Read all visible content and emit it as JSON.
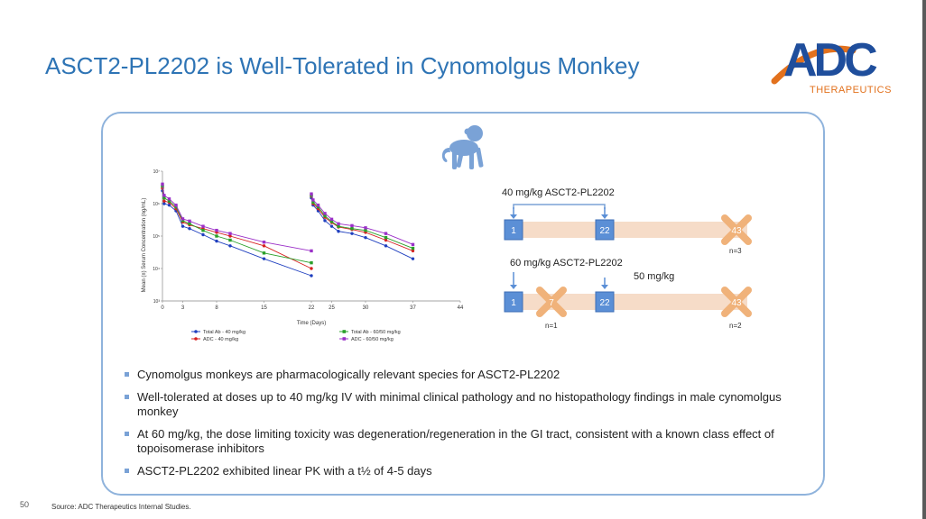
{
  "slide": {
    "title": "ASCT2-PL2202 is Well-Tolerated in Cynomolgus Monkey",
    "page_number": "50",
    "source": "Source: ADC Therapeutics Internal Studies.",
    "logo_text": "ADC",
    "logo_subtext": "THERAPEUTICS"
  },
  "colors": {
    "title": "#2e74b5",
    "panel_border": "#8fb3dc",
    "timeline_bar": "#f6dcc8",
    "day_box": "#5b8fd6",
    "cross": "#f0b27a"
  },
  "chart_data": {
    "type": "line",
    "ylabel": "Mean (±) Serum Concentration (ng/mL)",
    "xlabel": "Time (Days)",
    "y_scale": "log",
    "ylim": [
      1000,
      10000000
    ],
    "y_ticks": [
      {
        "value": 10000000,
        "label": "10⁷"
      },
      {
        "value": 1000000,
        "label": "10⁶"
      },
      {
        "value": 100000,
        "label": "10⁵"
      },
      {
        "value": 10000,
        "label": "10⁴"
      },
      {
        "value": 1000,
        "label": "10³"
      }
    ],
    "x_ticks": [
      0,
      3,
      8,
      15,
      22,
      25,
      30,
      37,
      44
    ],
    "xlim": [
      0,
      44
    ],
    "legend": {
      "total_ab_40": "Total Ab - 40 mg/kg",
      "adc_40": "ADC - 40 mg/kg",
      "total_ab_60_50": "Total Ab - 60/50 mg/kg",
      "adc_60_50": "ADC - 60/50 mg/kg"
    },
    "series": [
      {
        "name": "Total Ab - 40 mg/kg",
        "color": "#1f3fbf",
        "x": [
          0,
          0.25,
          1,
          2,
          3,
          4,
          6,
          8,
          10,
          15,
          22,
          22,
          22.25,
          23,
          24,
          25,
          26,
          28,
          30,
          33,
          37
        ],
        "y": [
          2500000,
          1000000,
          900000,
          600000,
          200000,
          170000,
          110000,
          70000,
          50000,
          20000,
          6000,
          1500000,
          900000,
          600000,
          300000,
          200000,
          140000,
          120000,
          90000,
          50000,
          20000
        ]
      },
      {
        "name": "ADC - 40 mg/kg",
        "color": "#d62020",
        "x": [
          0,
          0.25,
          1,
          2,
          3,
          4,
          6,
          8,
          10,
          15,
          22,
          22,
          22.25,
          23,
          24,
          25,
          26,
          28,
          30,
          33,
          37
        ],
        "y": [
          3000000,
          1200000,
          1100000,
          700000,
          270000,
          220000,
          170000,
          130000,
          100000,
          50000,
          10000,
          1700000,
          1000000,
          700000,
          380000,
          260000,
          190000,
          160000,
          130000,
          75000,
          35000
        ]
      },
      {
        "name": "Total Ab - 60/50 mg/kg",
        "color": "#2aa02a",
        "x": [
          0,
          0.25,
          1,
          2,
          3,
          4,
          6,
          8,
          10,
          15,
          22,
          22,
          22.25,
          23,
          24,
          25,
          26,
          28,
          30,
          33,
          37
        ],
        "y": [
          3500000,
          1500000,
          1200000,
          800000,
          300000,
          240000,
          150000,
          100000,
          75000,
          30000,
          15000,
          1800000,
          1100000,
          800000,
          420000,
          280000,
          200000,
          170000,
          150000,
          90000,
          42000
        ]
      },
      {
        "name": "ADC - 60/50 mg/kg",
        "color": "#9b30c8",
        "x": [
          0,
          0.25,
          1,
          2,
          3,
          4,
          6,
          8,
          10,
          15,
          22,
          22,
          22.25,
          23,
          24,
          25,
          26,
          28,
          30,
          33,
          37
        ],
        "y": [
          4000000,
          1800000,
          1400000,
          900000,
          340000,
          290000,
          200000,
          150000,
          120000,
          65000,
          35000,
          2000000,
          1300000,
          900000,
          500000,
          330000,
          240000,
          210000,
          180000,
          120000,
          55000
        ]
      }
    ]
  },
  "timeline": {
    "group1": {
      "dose_label": "40 mg/kg ASCT2-PL2202",
      "days": [
        "1",
        "22",
        "43"
      ],
      "n_label": "n=3"
    },
    "group2": {
      "dose_label": "60 mg/kg ASCT2-PL2202",
      "second_dose_label": "50 mg/kg",
      "days": [
        "1",
        "7",
        "22",
        "43"
      ],
      "n_label_1": "n=1",
      "n_label_2": "n=2"
    }
  },
  "bullets": [
    "Cynomolgus monkeys are pharmacologically relevant species for ASCT2-PL2202",
    "Well-tolerated at doses up to 40 mg/kg IV with minimal clinical pathology and no histopathology findings in male cynomolgus monkey",
    "At 60 mg/kg, the dose limiting toxicity was degeneration/regeneration in the GI tract, consistent with a known class effect of topoisomerase inhibitors",
    "ASCT2-PL2202 exhibited linear PK with a t½ of 4-5 days"
  ]
}
